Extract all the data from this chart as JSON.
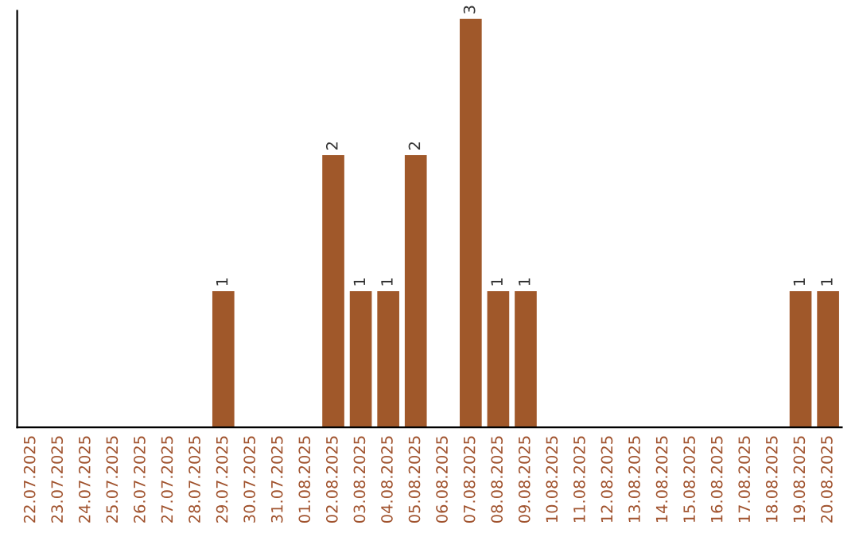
{
  "chart_data": {
    "type": "bar",
    "categories": [
      "22.07.2025",
      "23.07.2025",
      "24.07.2025",
      "25.07.2025",
      "26.07.2025",
      "27.07.2025",
      "28.07.2025",
      "29.07.2025",
      "30.07.2025",
      "31.07.2025",
      "01.08.2025",
      "02.08.2025",
      "03.08.2025",
      "04.08.2025",
      "05.08.2025",
      "06.08.2025",
      "07.08.2025",
      "08.08.2025",
      "09.08.2025",
      "10.08.2025",
      "11.08.2025",
      "12.08.2025",
      "13.08.2025",
      "14.08.2025",
      "15.08.2025",
      "16.08.2025",
      "17.08.2025",
      "18.08.2025",
      "19.08.2025",
      "20.08.2025"
    ],
    "values": [
      0,
      0,
      0,
      0,
      0,
      0,
      0,
      1,
      0,
      0,
      0,
      2,
      1,
      1,
      2,
      0,
      3,
      1,
      1,
      0,
      0,
      0,
      0,
      0,
      0,
      0,
      0,
      0,
      1,
      1
    ],
    "value_labels": [
      null,
      null,
      null,
      null,
      null,
      null,
      null,
      "1",
      null,
      null,
      null,
      "2",
      "1",
      "1",
      "2",
      null,
      "3",
      "1",
      "1",
      null,
      null,
      null,
      null,
      null,
      null,
      null,
      null,
      null,
      "1",
      "1"
    ],
    "color": "#a0582a",
    "tick_labels": "x",
    "grid": false,
    "legend": false
  }
}
